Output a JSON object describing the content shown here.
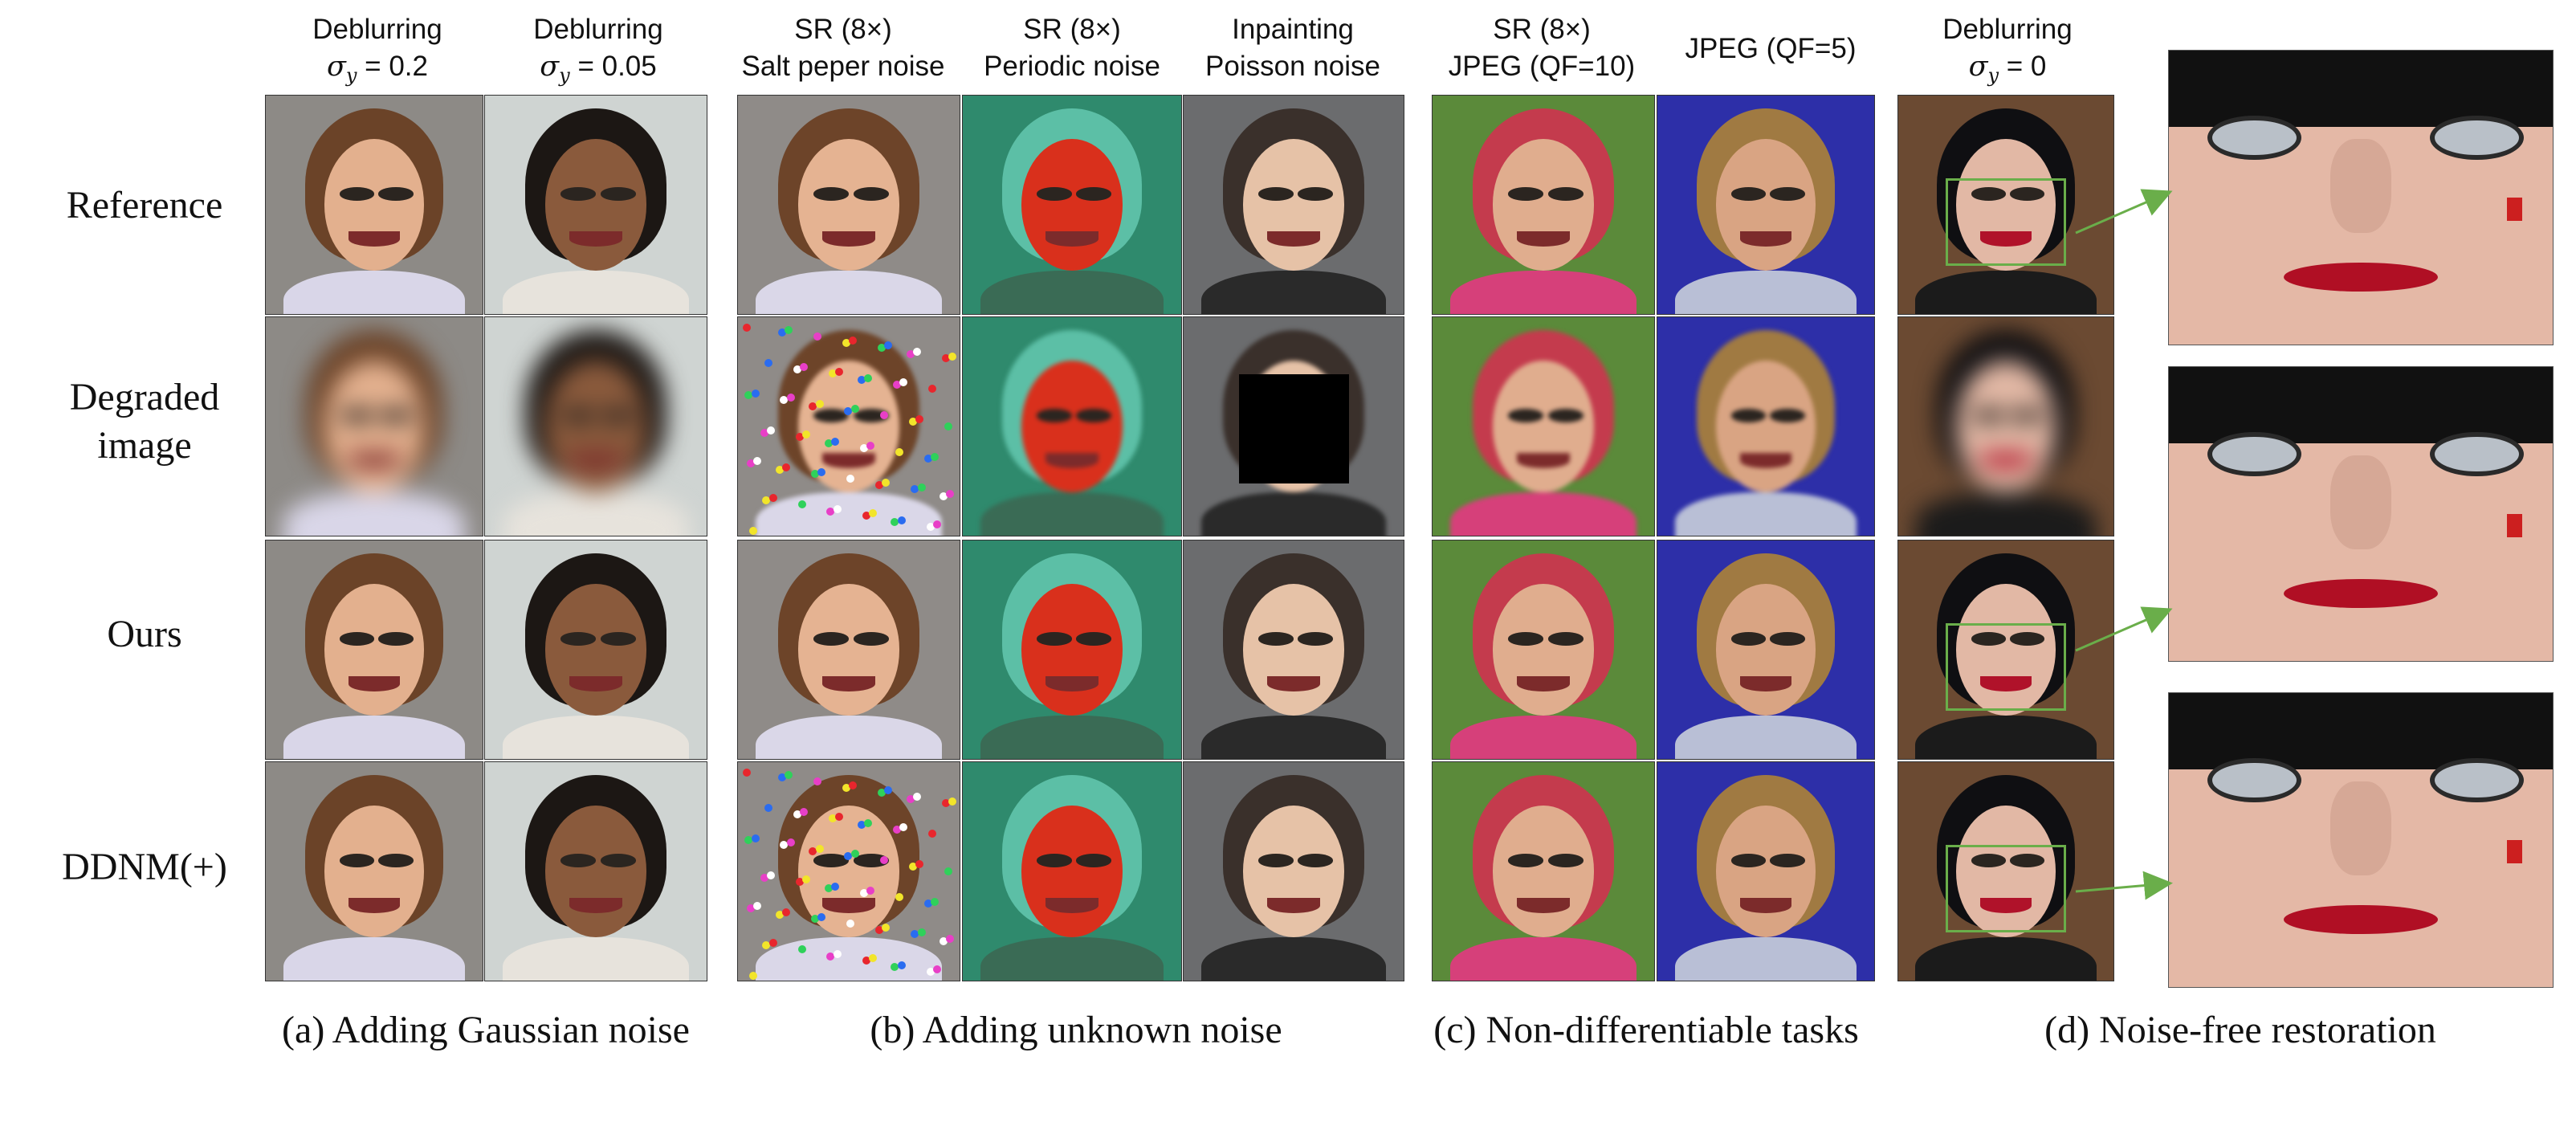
{
  "figure": {
    "column_headers": [
      {
        "line1": "Deblurring",
        "sigma_label": "σ",
        "sigma_sub": "y",
        "sigma_value": " = 0.2"
      },
      {
        "line1": "Deblurring",
        "sigma_label": "σ",
        "sigma_sub": "y",
        "sigma_value": " = 0.05"
      },
      {
        "line1": "SR (8×)",
        "line2": "Salt peper noise"
      },
      {
        "line1": "SR (8×)",
        "line2": "Periodic noise"
      },
      {
        "line1": "Inpainting",
        "line2": "Poisson noise"
      },
      {
        "line1": "SR (8×)",
        "line2": "JPEG (QF=10)"
      },
      {
        "line1": "JPEG (QF=5)"
      },
      {
        "line1": "Deblurring",
        "sigma_label": "σ",
        "sigma_sub": "y",
        "sigma_value": " = 0"
      }
    ],
    "row_labels": [
      {
        "line1": "Reference"
      },
      {
        "line1": "Degraded",
        "line2": "image"
      },
      {
        "line1": "Ours"
      },
      {
        "line1": "DDNM(+)"
      }
    ],
    "captions": [
      "(a) Adding Gaussian noise",
      "(b) Adding unknown noise",
      "(c) Non-differentiable tasks",
      "(d) Noise-free restoration"
    ],
    "colors": {
      "zoom_box": "#6aae4a",
      "background": "#ffffff"
    }
  }
}
